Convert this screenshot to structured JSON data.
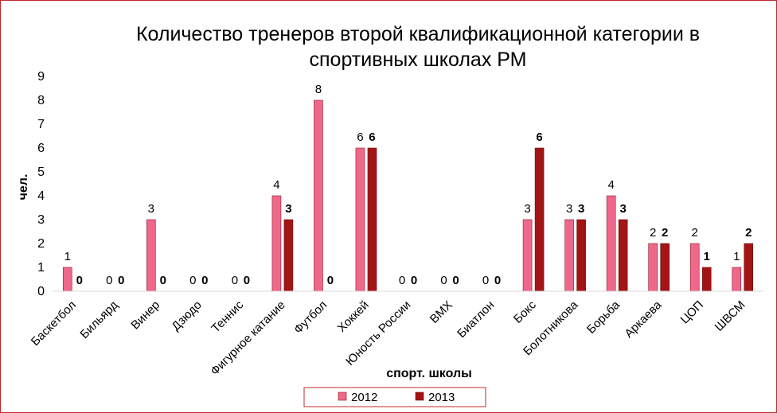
{
  "chart_data": {
    "type": "bar",
    "title_lines": [
      "Количество тренеров второй квалификационной категории в",
      "спортивных школах РМ"
    ],
    "xlabel": "спорт. школы",
    "ylabel": "чел.",
    "ylim": [
      0,
      9
    ],
    "yticks": [
      0,
      1,
      2,
      3,
      4,
      5,
      6,
      7,
      8,
      9
    ],
    "grid": false,
    "legend_position": "bottom",
    "categories": [
      "Баскетбол",
      "Бильярд",
      "Винер",
      "Дзюдо",
      "Теннис",
      "Фигурное катание",
      "Футбол",
      "Хоккей",
      "Юность России",
      "ВМХ",
      "Биатлон",
      "Бокс",
      "Болотникова",
      "Борьба",
      "Аркаева",
      "ЦОП",
      "ШВСМ"
    ],
    "series": [
      {
        "name": "2012",
        "color": "#f0678c",
        "values": [
          1,
          0,
          3,
          0,
          0,
          4,
          8,
          6,
          0,
          0,
          0,
          3,
          3,
          4,
          2,
          2,
          1
        ]
      },
      {
        "name": "2013",
        "color": "#a31515",
        "values": [
          0,
          0,
          0,
          0,
          0,
          3,
          0,
          6,
          0,
          0,
          0,
          6,
          3,
          3,
          2,
          1,
          2
        ]
      }
    ]
  }
}
